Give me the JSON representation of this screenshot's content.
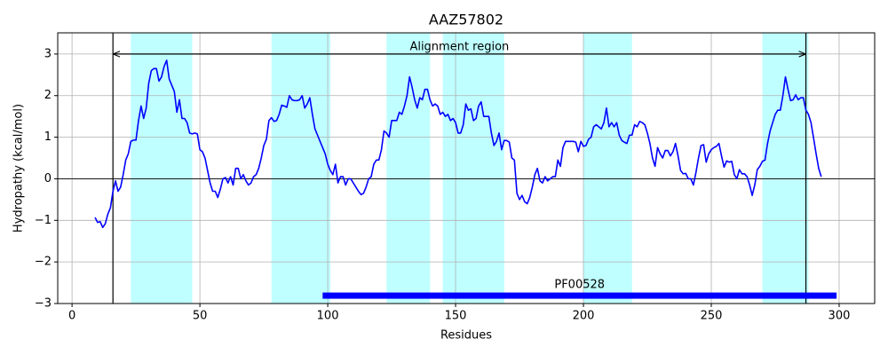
{
  "chart_data": {
    "type": "line",
    "title": "AAZ57802",
    "xlabel": "Residues",
    "ylabel": "Hydropathy (kcal/mol)",
    "x": [
      9,
      10,
      11,
      12,
      13,
      14,
      15,
      16,
      17,
      18,
      19,
      20,
      21,
      22,
      23,
      24,
      25,
      26,
      27,
      28,
      29,
      30,
      31,
      32,
      33,
      34,
      35,
      36,
      37,
      38,
      39,
      40,
      41,
      42,
      43,
      44,
      45,
      46,
      47,
      48,
      49,
      50,
      51,
      52,
      53,
      54,
      55,
      56,
      57,
      58,
      59,
      60,
      61,
      62,
      63,
      64,
      65,
      66,
      67,
      68,
      69,
      70,
      71,
      72,
      73,
      74,
      75,
      76,
      77,
      78,
      79,
      80,
      81,
      82,
      83,
      84,
      85,
      86,
      87,
      88,
      89,
      90,
      91,
      92,
      93,
      94,
      95,
      96,
      97,
      98,
      99,
      100,
      101,
      102,
      103,
      104,
      105,
      106,
      107,
      108,
      109,
      110,
      111,
      112,
      113,
      114,
      115,
      116,
      117,
      118,
      119,
      120,
      121,
      122,
      123,
      124,
      125,
      126,
      127,
      128,
      129,
      130,
      131,
      132,
      133,
      134,
      135,
      136,
      137,
      138,
      139,
      140,
      141,
      142,
      143,
      144,
      145,
      146,
      147,
      148,
      149,
      150,
      151,
      152,
      153,
      154,
      155,
      156,
      157,
      158,
      159,
      160,
      161,
      162,
      163,
      164,
      165,
      166,
      167,
      168,
      169,
      170,
      171,
      172,
      173,
      174,
      175,
      176,
      177,
      178,
      179,
      180,
      181,
      182,
      183,
      184,
      185,
      186,
      187,
      188,
      189,
      190,
      191,
      192,
      193,
      194,
      195,
      196,
      197,
      198,
      199,
      200,
      201,
      202,
      203,
      204,
      205,
      206,
      207,
      208,
      209,
      210,
      211,
      212,
      213,
      214,
      215,
      216,
      217,
      218,
      219,
      220,
      221,
      222,
      223,
      224,
      225,
      226,
      227,
      228,
      229,
      230,
      231,
      232,
      233,
      234,
      235,
      236,
      237,
      238,
      239,
      240,
      241,
      242,
      243,
      244,
      245,
      246,
      247,
      248,
      249,
      250,
      251,
      252,
      253,
      254,
      255,
      256,
      257,
      258,
      259,
      260,
      261,
      262,
      263,
      264,
      265,
      266,
      267,
      268,
      269,
      270,
      271,
      272,
      273,
      274,
      275,
      276,
      277,
      278,
      279,
      280,
      281,
      282,
      283,
      284,
      285,
      286,
      287,
      288,
      289,
      290,
      291,
      292,
      293
    ],
    "series": [
      {
        "color": "#0000ff",
        "values": [
          -0.93,
          -1.05,
          -1.03,
          -1.17,
          -1.08,
          -0.85,
          -0.7,
          -0.3,
          -0.05,
          -0.3,
          -0.2,
          0.1,
          0.45,
          0.6,
          0.9,
          0.93,
          0.93,
          1.4,
          1.75,
          1.45,
          1.7,
          2.3,
          2.6,
          2.65,
          2.65,
          2.35,
          2.45,
          2.7,
          2.85,
          2.4,
          2.25,
          2.1,
          1.6,
          1.9,
          1.45,
          1.45,
          1.35,
          1.1,
          1.08,
          1.1,
          1.08,
          0.7,
          0.65,
          0.5,
          0.2,
          -0.1,
          -0.3,
          -0.3,
          -0.45,
          -0.25,
          0.0,
          0.03,
          -0.1,
          0.05,
          -0.15,
          0.25,
          0.25,
          0.0,
          0.1,
          -0.05,
          -0.15,
          -0.1,
          0.05,
          0.1,
          0.25,
          0.5,
          0.8,
          0.95,
          1.4,
          1.47,
          1.38,
          1.4,
          1.55,
          1.77,
          1.75,
          1.72,
          2.0,
          1.9,
          1.88,
          1.88,
          1.9,
          2.0,
          1.7,
          1.8,
          1.95,
          1.55,
          1.2,
          1.05,
          0.9,
          0.75,
          0.6,
          0.35,
          0.2,
          0.1,
          0.35,
          -0.1,
          0.05,
          0.05,
          -0.15,
          0.0,
          0.0,
          -0.1,
          -0.2,
          -0.3,
          -0.38,
          -0.35,
          -0.2,
          0.0,
          0.05,
          0.35,
          0.45,
          0.45,
          0.7,
          1.15,
          1.1,
          1.0,
          1.4,
          1.4,
          1.4,
          1.6,
          1.55,
          1.75,
          2.0,
          2.45,
          2.2,
          1.9,
          1.7,
          1.95,
          1.9,
          2.15,
          2.15,
          1.9,
          1.75,
          1.8,
          1.75,
          1.55,
          1.6,
          1.5,
          1.55,
          1.4,
          1.45,
          1.35,
          1.1,
          1.1,
          1.3,
          1.8,
          1.65,
          1.68,
          1.4,
          1.45,
          1.75,
          1.85,
          1.5,
          1.5,
          1.5,
          1.1,
          0.8,
          0.9,
          1.1,
          0.7,
          0.92,
          0.92,
          0.88,
          0.5,
          0.45,
          -0.35,
          -0.5,
          -0.4,
          -0.55,
          -0.6,
          -0.45,
          -0.2,
          0.1,
          0.25,
          -0.05,
          -0.1,
          0.05,
          -0.05,
          0.0,
          0.05,
          0.05,
          0.45,
          0.3,
          0.75,
          0.9,
          0.9,
          0.9,
          0.9,
          0.88,
          0.65,
          0.9,
          0.78,
          0.8,
          0.95,
          1.0,
          1.25,
          1.3,
          1.25,
          1.2,
          1.35,
          1.7,
          1.25,
          1.35,
          1.25,
          1.35,
          1.05,
          0.92,
          0.88,
          0.85,
          1.05,
          1.05,
          1.3,
          1.25,
          1.38,
          1.35,
          1.3,
          1.1,
          0.85,
          0.5,
          0.3,
          0.75,
          0.6,
          0.5,
          0.68,
          0.68,
          0.55,
          0.65,
          0.85,
          0.55,
          0.2,
          0.12,
          0.13,
          0.0,
          0.0,
          -0.15,
          0.15,
          0.5,
          0.8,
          0.82,
          0.4,
          0.6,
          0.7,
          0.75,
          0.78,
          0.85,
          0.55,
          0.28,
          0.43,
          0.4,
          0.42,
          0.1,
          0.0,
          0.22,
          0.12,
          0.12,
          0.05,
          -0.15,
          -0.4,
          -0.15,
          0.22,
          0.3,
          0.42,
          0.45,
          0.85,
          1.15,
          1.35,
          1.55,
          1.65,
          1.65,
          2.0,
          2.45,
          2.15,
          1.88,
          1.9,
          2.02,
          1.9,
          1.95,
          1.95,
          1.65,
          1.55,
          1.35,
          0.98,
          0.6,
          0.25,
          0.05
        ]
      }
    ],
    "xlim": [
      -5.6,
      313.9
    ],
    "ylim": [
      -3,
      3.51
    ],
    "xticks": [
      0,
      50,
      100,
      150,
      200,
      250,
      300
    ],
    "yticks": [
      {
        "value": -3,
        "label": "−3"
      },
      {
        "value": -2,
        "label": "−2"
      },
      {
        "value": -1,
        "label": "−1"
      },
      0,
      1,
      2,
      3
    ],
    "grid": true,
    "zero_line": 0,
    "shade_color": "#bfffff",
    "shaded_regions": [
      {
        "start": 23,
        "end": 47
      },
      {
        "start": 78,
        "end": 101
      },
      {
        "start": 123,
        "end": 140
      },
      {
        "start": 145,
        "end": 169
      },
      {
        "start": 200,
        "end": 219
      },
      {
        "start": 270,
        "end": 288
      }
    ],
    "alignment_region": {
      "start": 16,
      "end": 287,
      "y": 3,
      "label": "Alignment region"
    },
    "domain": {
      "label": "PF00528",
      "start": 98,
      "end": 299,
      "y": -2.81,
      "color": "#0000ff"
    }
  }
}
